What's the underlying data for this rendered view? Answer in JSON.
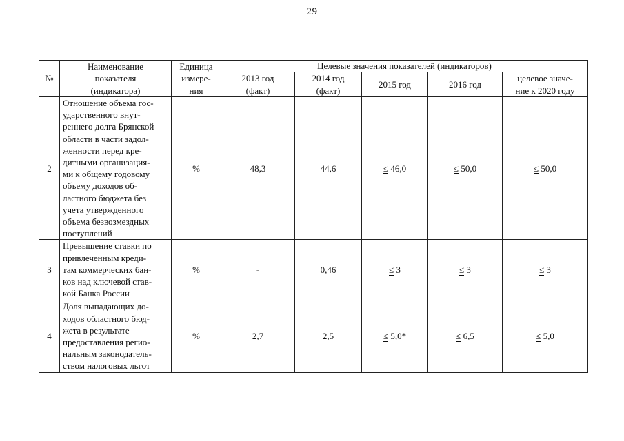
{
  "page": {
    "number": "29"
  },
  "table": {
    "headers": {
      "num": "№",
      "name": "Наименование\nпоказателя\n(индикатора)",
      "unit": "Единица\nизмере-\nния",
      "group": "Целевые значения показателей (индикаторов)",
      "years": [
        "2013 год\n(факт)",
        "2014 год\n(факт)",
        "2015 год",
        "2016 год",
        "целевое значе-\nние к 2020 году"
      ]
    },
    "rows": [
      {
        "num": "2",
        "name": "Отношение объема гос-\nударственного внут-\nреннего долга Брянской\nобласти в части задол-\nженности перед кре-\nдитными организация-\nми к общему годовому\nобъему доходов об-\nластного бюджета без\nучета утвержденного\nобъема безвозмездных\nпоступлений",
        "unit": "%",
        "v2013": "48,3",
        "v2014": "44,6",
        "v2015_sign": "≤",
        "v2015": "46,0",
        "v2016_sign": "≤",
        "v2016": "50,0",
        "v2020_sign": "≤",
        "v2020": "50,0"
      },
      {
        "num": "3",
        "name": "Превышение ставки по\nпривлеченным креди-\nтам коммерческих бан-\nков над ключевой став-\nкой Банка России",
        "unit": "%",
        "v2013": "-",
        "v2014": "0,46",
        "v2015_sign": "≤",
        "v2015": "3",
        "v2016_sign": "≤",
        "v2016": "3",
        "v2020_sign": "≤",
        "v2020": "3"
      },
      {
        "num": "4",
        "name": "Доля выпадающих до-\nходов областного бюд-\nжета в результате\nпредоставления регио-\nнальным законодатель-\nством налоговых льгот",
        "unit": "%",
        "v2013": "2,7",
        "v2014": "2,5",
        "v2015_sign": "≤",
        "v2015": "5,0*",
        "v2016_sign": "≤",
        "v2016": "6,5",
        "v2020_sign": "≤",
        "v2020": "5,0"
      }
    ]
  }
}
